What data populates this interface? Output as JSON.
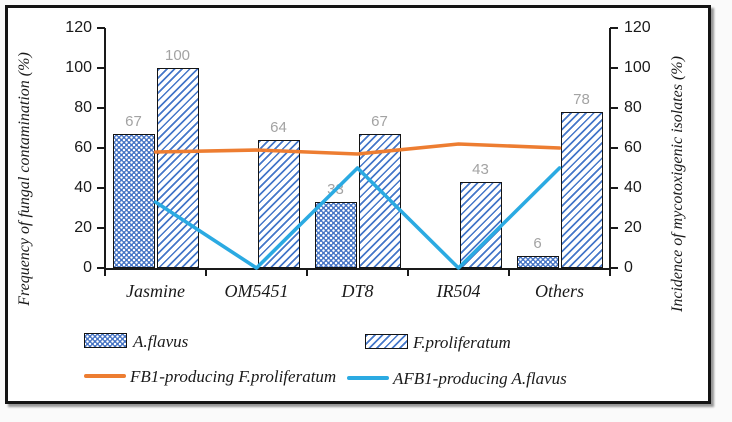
{
  "chart_data": {
    "type": "bar",
    "subtype": "bar-line-combo",
    "categories": [
      "Jasmine",
      "OM5451",
      "DT8",
      "IR504",
      "Others"
    ],
    "bar_series": [
      {
        "name": "A.flavus",
        "pattern": "dotted-diamond-icon",
        "color": "#4472C4",
        "values": [
          67,
          0,
          33,
          0,
          6
        ]
      },
      {
        "name": "F.proliferatum",
        "pattern": "diagonal-hatch-icon",
        "color": "#4472C4",
        "values": [
          100,
          64,
          67,
          43,
          78
        ]
      }
    ],
    "line_series": [
      {
        "name": "FB1-producing F.proliferatum",
        "color": "#ED7D31",
        "values": [
          58,
          59,
          57,
          62,
          60
        ]
      },
      {
        "name": "AFB1-producing A.flavus",
        "color": "#2BAAE2",
        "values": [
          33,
          0,
          50,
          0,
          50
        ]
      }
    ],
    "left_axis": {
      "label": "Frequency of fungal contamination (%)",
      "ticks": [
        120,
        100,
        80,
        60,
        40,
        20,
        0
      ],
      "range": [
        0,
        120
      ]
    },
    "right_axis": {
      "label": "Incidence of mycotoxigenic isolates (%)",
      "ticks": [
        120,
        100,
        80,
        60,
        40,
        20,
        0
      ],
      "range": [
        0,
        120
      ]
    },
    "data_labels": {
      "color": "#a3a3a3",
      "shown": [
        67,
        100,
        64,
        33,
        67,
        43,
        6,
        78
      ],
      "show_zero": false
    },
    "grid": "off",
    "legend_position": "bottom"
  }
}
